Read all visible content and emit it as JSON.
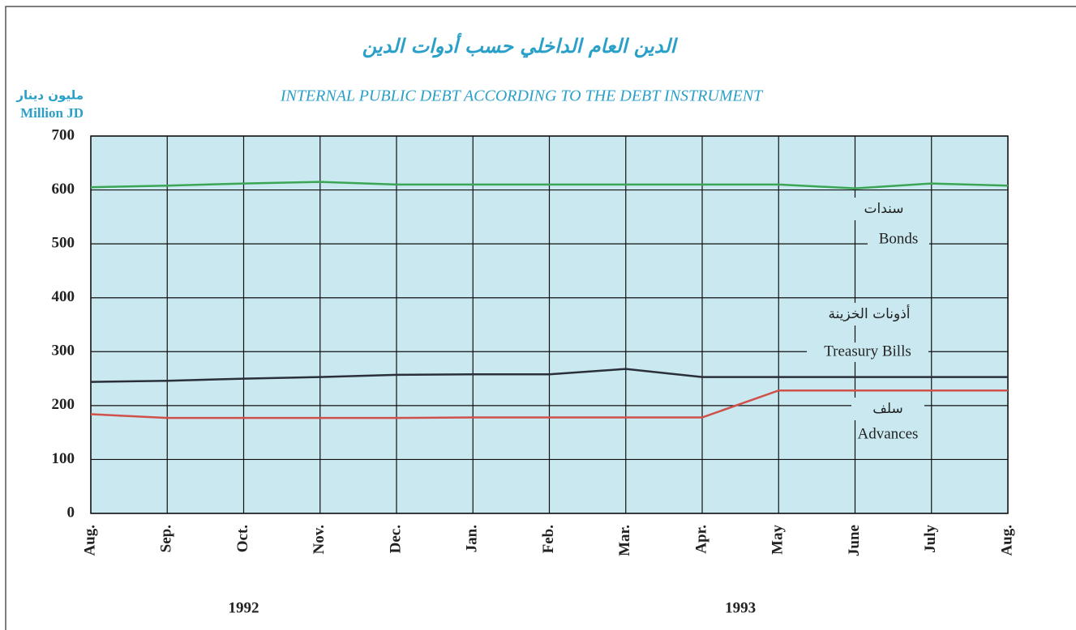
{
  "chart_data": {
    "type": "line",
    "title_ar": "الدين العام الداخلي حسب أدوات الدين",
    "title": "INTERNAL PUBLIC DEBT ACCORDING TO THE DEBT INSTRUMENT",
    "y_label_ar": "مليون دينار",
    "y_label": "Million JD",
    "categories": [
      "Aug.",
      "Sep.",
      "Oct.",
      "Nov.",
      "Dec.",
      "Jan.",
      "Feb.",
      "Mar.",
      "Apr.",
      "May",
      "June",
      "July",
      "Aug."
    ],
    "year_labels": [
      "1992",
      "1993"
    ],
    "series": [
      {
        "name": "Bonds",
        "name_ar": "سندات",
        "color": "#3aa655",
        "values": [
          605,
          608,
          612,
          615,
          610,
          610,
          610,
          610,
          610,
          610,
          603,
          612,
          608
        ]
      },
      {
        "name": "Treasury Bills",
        "name_ar": "أذونات الخزينة",
        "color": "#2a2f3a",
        "values": [
          244,
          246,
          250,
          253,
          257,
          258,
          258,
          268,
          253,
          253,
          253,
          253,
          253
        ]
      },
      {
        "name": "Advances",
        "name_ar": "سلف",
        "color": "#d0504a",
        "values": [
          184,
          177,
          177,
          177,
          177,
          178,
          178,
          178,
          178,
          228,
          228,
          228,
          228
        ]
      }
    ],
    "ylim": [
      0,
      700
    ],
    "yticks": [
      0,
      100,
      200,
      300,
      400,
      500,
      600,
      700
    ],
    "grid": true
  }
}
